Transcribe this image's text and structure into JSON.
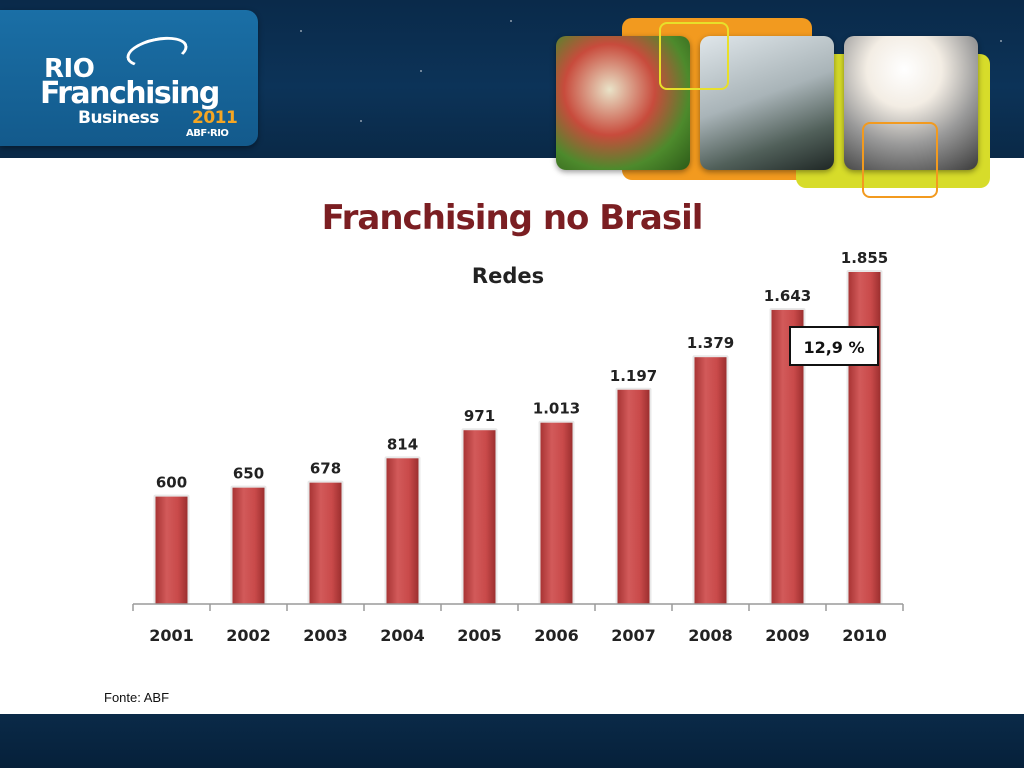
{
  "slide": {
    "logo": {
      "line1": "RIO",
      "line2": "Franchising",
      "line3": "Business",
      "year": "2011",
      "org": "ABF·RIO"
    },
    "title": "Franchising no Brasil",
    "source": "Fonte: ABF"
  },
  "colors": {
    "header_navy": "#0c3358",
    "logo_blue": "#1a6fa6",
    "title_red": "#7b1e22",
    "bar_red": "#c94a4a",
    "panel_orange": "#f29a1f",
    "panel_yellow": "#d7dc2a"
  },
  "chart_data": {
    "type": "bar",
    "title": "Redes",
    "categories": [
      "2001",
      "2002",
      "2003",
      "2004",
      "2005",
      "2006",
      "2007",
      "2008",
      "2009",
      "2010"
    ],
    "values": [
      600,
      650,
      678,
      814,
      971,
      1013,
      1197,
      1379,
      1643,
      1855
    ],
    "value_labels": [
      "600",
      "650",
      "678",
      "814",
      "971",
      "1.013",
      "1.197",
      "1.379",
      "1.643",
      "1.855"
    ],
    "callout": "12,9 %",
    "ylim": [
      0,
      1855
    ],
    "grid": false,
    "xlabel": "",
    "ylabel": ""
  }
}
